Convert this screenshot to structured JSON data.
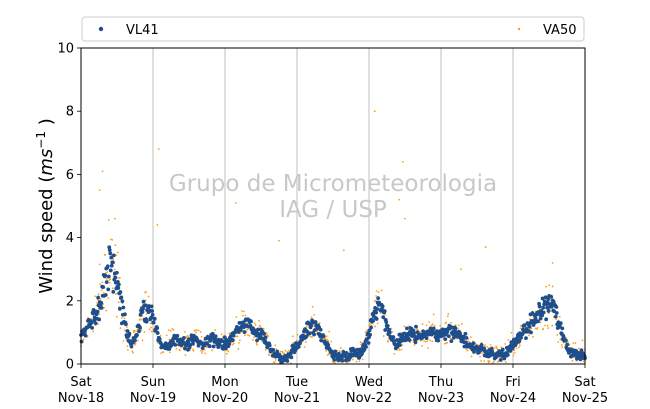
{
  "chart_data": {
    "type": "scatter",
    "title": "",
    "ylabel_main": "Wind speed (",
    "ylabel_unit_base": "ms",
    "ylabel_unit_exp": "−1",
    "ylabel_close": " )",
    "ylim": [
      0,
      10
    ],
    "yticks": [
      0,
      2,
      4,
      6,
      8,
      10
    ],
    "xlim": [
      "2018-11-18",
      "2018-11-25"
    ],
    "xticks": [
      {
        "day": "Sat",
        "date": "Nov-18"
      },
      {
        "day": "Sun",
        "date": "Nov-19"
      },
      {
        "day": "Mon",
        "date": "Nov-20"
      },
      {
        "day": "Tue",
        "date": "Nov-21"
      },
      {
        "day": "Wed",
        "date": "Nov-22"
      },
      {
        "day": "Thu",
        "date": "Nov-23"
      },
      {
        "day": "Fri",
        "date": "Nov-24"
      },
      {
        "day": "Sat",
        "date": "Nov-25"
      }
    ],
    "x_grid": true,
    "legend_placement": "top, above plot",
    "watermark": [
      "Grupo de Micrometeorologia",
      "IAG / USP"
    ],
    "series": [
      {
        "name": "VL41",
        "color": "#1f4e8c",
        "marker": "dot-large",
        "x_days": [
          0.0,
          0.1,
          0.2,
          0.28,
          0.35,
          0.42,
          0.48,
          0.55,
          0.62,
          0.7,
          0.78,
          0.85,
          0.92,
          1.0,
          1.08,
          1.15,
          1.22,
          1.3,
          1.38,
          1.45,
          1.52,
          1.6,
          1.68,
          1.75,
          1.82,
          1.9,
          2.0,
          2.1,
          2.2,
          2.3,
          2.4,
          2.5,
          2.6,
          2.7,
          2.8,
          2.9,
          3.0,
          3.1,
          3.2,
          3.3,
          3.4,
          3.5,
          3.6,
          3.7,
          3.8,
          3.9,
          4.0,
          4.1,
          4.2,
          4.3,
          4.4,
          4.5,
          4.6,
          4.7,
          4.8,
          4.9,
          5.0,
          5.1,
          5.2,
          5.3,
          5.4,
          5.5,
          5.6,
          5.7,
          5.8,
          5.9,
          6.0,
          6.15,
          6.3,
          6.4,
          6.5,
          6.6,
          6.7,
          6.8,
          6.9,
          7.0
        ],
        "y": [
          0.8,
          1.2,
          1.6,
          2.0,
          2.9,
          3.2,
          2.8,
          2.0,
          1.2,
          0.6,
          1.0,
          1.6,
          1.8,
          1.5,
          0.8,
          0.5,
          0.6,
          0.8,
          0.7,
          0.6,
          0.7,
          0.8,
          0.6,
          0.7,
          0.8,
          0.7,
          0.6,
          0.8,
          1.2,
          1.3,
          1.1,
          1.0,
          0.6,
          0.3,
          0.2,
          0.3,
          0.6,
          0.9,
          1.3,
          1.1,
          0.7,
          0.3,
          0.2,
          0.2,
          0.3,
          0.4,
          0.9,
          1.9,
          1.6,
          0.8,
          0.6,
          0.9,
          1.0,
          0.8,
          1.0,
          1.0,
          0.9,
          1.1,
          1.0,
          0.8,
          0.6,
          0.5,
          0.4,
          0.3,
          0.3,
          0.3,
          0.6,
          1.0,
          1.4,
          1.7,
          2.0,
          1.5,
          0.8,
          0.3,
          0.3,
          0.2
        ],
        "noise": 0.35
      },
      {
        "name": "VA50",
        "color": "#ff9f1c",
        "marker": "dot-small",
        "x_days": [
          0.0,
          0.1,
          0.2,
          0.28,
          0.35,
          0.42,
          0.48,
          0.55,
          0.62,
          0.7,
          0.78,
          0.85,
          0.92,
          1.0,
          1.08,
          1.15,
          1.22,
          1.3,
          1.38,
          1.45,
          1.52,
          1.6,
          1.68,
          1.75,
          1.82,
          1.9,
          2.0,
          2.1,
          2.2,
          2.3,
          2.4,
          2.5,
          2.6,
          2.7,
          2.8,
          2.9,
          3.0,
          3.1,
          3.2,
          3.3,
          3.4,
          3.5,
          3.6,
          3.7,
          3.8,
          3.9,
          4.0,
          4.1,
          4.2,
          4.3,
          4.4,
          4.5,
          4.6,
          4.7,
          4.8,
          4.9,
          5.0,
          5.1,
          5.2,
          5.3,
          5.4,
          5.5,
          5.6,
          5.7,
          5.8,
          5.9,
          6.0,
          6.15,
          6.3,
          6.4,
          6.5,
          6.6,
          6.7,
          6.8,
          6.9,
          7.0
        ],
        "y": [
          0.8,
          1.2,
          1.6,
          2.0,
          2.9,
          3.2,
          2.8,
          2.0,
          1.2,
          0.6,
          1.0,
          1.6,
          1.8,
          1.5,
          0.8,
          0.5,
          0.6,
          0.8,
          0.7,
          0.6,
          0.7,
          0.8,
          0.6,
          0.7,
          0.8,
          0.7,
          0.6,
          0.8,
          1.2,
          1.3,
          1.1,
          1.0,
          0.6,
          0.3,
          0.2,
          0.3,
          0.6,
          0.9,
          1.3,
          1.1,
          0.7,
          0.3,
          0.2,
          0.2,
          0.3,
          0.4,
          0.9,
          1.9,
          1.6,
          0.8,
          0.6,
          0.9,
          1.0,
          0.8,
          1.0,
          1.0,
          0.9,
          1.1,
          1.0,
          0.8,
          0.6,
          0.5,
          0.4,
          0.3,
          0.3,
          0.3,
          0.6,
          1.0,
          1.4,
          1.7,
          2.0,
          1.5,
          0.8,
          0.3,
          0.3,
          0.2
        ],
        "noise": 0.7,
        "outliers": [
          {
            "x": 0.3,
            "y": 6.1
          },
          {
            "x": 0.26,
            "y": 5.5
          },
          {
            "x": 0.47,
            "y": 4.6
          },
          {
            "x": 1.08,
            "y": 6.8
          },
          {
            "x": 1.06,
            "y": 4.4
          },
          {
            "x": 2.15,
            "y": 5.1
          },
          {
            "x": 2.75,
            "y": 3.9
          },
          {
            "x": 3.65,
            "y": 3.6
          },
          {
            "x": 4.08,
            "y": 8.0
          },
          {
            "x": 4.47,
            "y": 6.4
          },
          {
            "x": 4.42,
            "y": 5.2
          },
          {
            "x": 4.5,
            "y": 4.6
          },
          {
            "x": 5.28,
            "y": 3.0
          },
          {
            "x": 5.62,
            "y": 3.7
          },
          {
            "x": 6.55,
            "y": 3.2
          }
        ]
      }
    ]
  }
}
